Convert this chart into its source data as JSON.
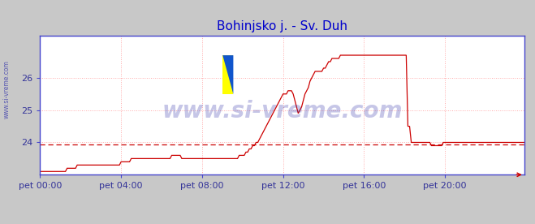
{
  "title": "Bohinjsko j. - Sv. Duh",
  "title_color": "#0000cc",
  "title_fontsize": 11,
  "fig_bg_color": "#c8c8c8",
  "plot_bg_color": "#ffffff",
  "grid_color": "#ffaaaa",
  "spine_color": "#4444cc",
  "x_label_color": "#333399",
  "y_label_color": "#333399",
  "ylim": [
    23.0,
    27.3
  ],
  "yticks": [
    24,
    25,
    26
  ],
  "xlim": [
    0,
    287
  ],
  "xtick_labels": [
    "pet 00:00",
    "pet 04:00",
    "pet 08:00",
    "pet 12:00",
    "pet 16:00",
    "pet 20:00"
  ],
  "xtick_positions": [
    0,
    48,
    96,
    144,
    192,
    240
  ],
  "avg_line_value": 23.93,
  "avg_line_color": "#cc0000",
  "temp_line_color": "#cc0000",
  "watermark_text": "www.si-vreme.com",
  "watermark_color": "#3333aa",
  "watermark_alpha": 0.28,
  "left_label": "www.si-vreme.com",
  "left_label_color": "#3333aa",
  "legend_temp_color": "#cc0000",
  "legend_pretok_color": "#008800",
  "temp_data": [
    23.1,
    23.1,
    23.1,
    23.1,
    23.1,
    23.1,
    23.1,
    23.1,
    23.1,
    23.1,
    23.1,
    23.1,
    23.1,
    23.1,
    23.1,
    23.1,
    23.2,
    23.2,
    23.2,
    23.2,
    23.2,
    23.2,
    23.3,
    23.3,
    23.3,
    23.3,
    23.3,
    23.3,
    23.3,
    23.3,
    23.3,
    23.3,
    23.3,
    23.3,
    23.3,
    23.3,
    23.3,
    23.3,
    23.3,
    23.3,
    23.3,
    23.3,
    23.3,
    23.3,
    23.3,
    23.3,
    23.3,
    23.3,
    23.4,
    23.4,
    23.4,
    23.4,
    23.4,
    23.4,
    23.5,
    23.5,
    23.5,
    23.5,
    23.5,
    23.5,
    23.5,
    23.5,
    23.5,
    23.5,
    23.5,
    23.5,
    23.5,
    23.5,
    23.5,
    23.5,
    23.5,
    23.5,
    23.5,
    23.5,
    23.5,
    23.5,
    23.5,
    23.5,
    23.6,
    23.6,
    23.6,
    23.6,
    23.6,
    23.6,
    23.5,
    23.5,
    23.5,
    23.5,
    23.5,
    23.5,
    23.5,
    23.5,
    23.5,
    23.5,
    23.5,
    23.5,
    23.5,
    23.5,
    23.5,
    23.5,
    23.5,
    23.5,
    23.5,
    23.5,
    23.5,
    23.5,
    23.5,
    23.5,
    23.5,
    23.5,
    23.5,
    23.5,
    23.5,
    23.5,
    23.5,
    23.5,
    23.5,
    23.5,
    23.6,
    23.6,
    23.6,
    23.6,
    23.7,
    23.7,
    23.8,
    23.8,
    23.9,
    23.9,
    24.0,
    24.0,
    24.1,
    24.2,
    24.3,
    24.4,
    24.5,
    24.6,
    24.7,
    24.8,
    24.9,
    25.0,
    25.1,
    25.2,
    25.3,
    25.4,
    25.5,
    25.5,
    25.5,
    25.6,
    25.6,
    25.6,
    25.5,
    25.3,
    25.1,
    24.9,
    25.0,
    25.1,
    25.3,
    25.5,
    25.6,
    25.7,
    25.9,
    26.0,
    26.1,
    26.2,
    26.2,
    26.2,
    26.2,
    26.2,
    26.3,
    26.3,
    26.4,
    26.5,
    26.5,
    26.6,
    26.6,
    26.6,
    26.6,
    26.6,
    26.7,
    26.7,
    26.7,
    26.7,
    26.7,
    26.7,
    26.7,
    26.7,
    26.7,
    26.7,
    26.7,
    26.7,
    26.7,
    26.7,
    26.7,
    26.7,
    26.7,
    26.7,
    26.7,
    26.7,
    26.7,
    26.7,
    26.7,
    26.7,
    26.7,
    26.7,
    26.7,
    26.7,
    26.7,
    26.7,
    26.7,
    26.7,
    26.7,
    26.7,
    26.7,
    26.7,
    26.7,
    26.7,
    26.7,
    26.7,
    24.5,
    24.5,
    24.0,
    24.0,
    24.0,
    24.0,
    24.0,
    24.0,
    24.0,
    24.0,
    24.0,
    24.0,
    24.0,
    24.0,
    23.9,
    23.9,
    23.9,
    23.9,
    23.9,
    23.9,
    23.9,
    24.0,
    24.0,
    24.0,
    24.0,
    24.0,
    24.0,
    24.0,
    24.0,
    24.0,
    24.0,
    24.0,
    24.0,
    24.0,
    24.0,
    24.0,
    24.0,
    24.0,
    24.0,
    24.0,
    24.0,
    24.0,
    24.0,
    24.0,
    24.0,
    24.0,
    24.0,
    24.0,
    24.0,
    24.0,
    24.0,
    24.0,
    24.0,
    24.0,
    24.0,
    24.0,
    24.0,
    24.0,
    24.0,
    24.0,
    24.0,
    24.0,
    24.0,
    24.0,
    24.0,
    24.0,
    24.0,
    24.0,
    24.0,
    24.0
  ]
}
